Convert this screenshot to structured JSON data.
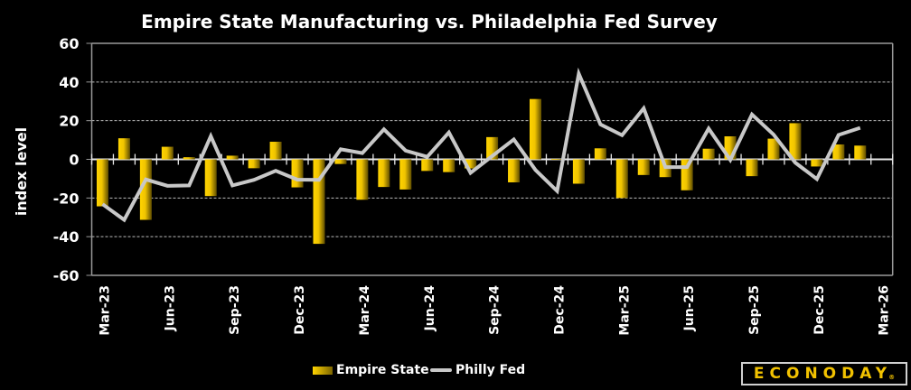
{
  "chart_data": {
    "type": "bar+line",
    "title": "Empire State Manufacturing vs. Philadelphia Fed Survey",
    "xlabel": "",
    "ylabel": "index level",
    "ylim": [
      -60,
      60
    ],
    "yticks": [
      60,
      40,
      20,
      0,
      -20,
      -40,
      -60
    ],
    "grid": true,
    "legend_position": "bottom",
    "categories": [
      "Mar-23",
      "Apr-23",
      "May-23",
      "Jun-23",
      "Jul-23",
      "Aug-23",
      "Sep-23",
      "Oct-23",
      "Nov-23",
      "Dec-23",
      "Jan-24",
      "Feb-24",
      "Mar-24",
      "Apr-24",
      "May-24",
      "Jun-24",
      "Jul-24",
      "Aug-24",
      "Sep-24",
      "Oct-24",
      "Nov-24",
      "Dec-24",
      "Jan-25",
      "Feb-25",
      "Mar-25",
      "Apr-25",
      "May-25",
      "Jun-25",
      "Jul-25",
      "Aug-25",
      "Sep-25",
      "Oct-25",
      "Nov-25",
      "Dec-25",
      "Jan-26",
      "Feb-26",
      "Mar-26"
    ],
    "xtick_labels": [
      "Mar-23",
      "Jun-23",
      "Sep-23",
      "Dec-23",
      "Mar-24",
      "Jun-24",
      "Sep-24",
      "Dec-24",
      "Mar-25",
      "Jun-25",
      "Sep-25",
      "Dec-25",
      "Mar-26"
    ],
    "series": [
      {
        "name": "Empire State",
        "type": "bar",
        "color": "#ffd400",
        "values": [
          -24.3,
          10.9,
          -31.3,
          6.5,
          1.1,
          -19.0,
          1.9,
          -4.6,
          9.1,
          -14.5,
          -43.7,
          -2.4,
          -20.9,
          -14.3,
          -15.6,
          -6.0,
          -6.6,
          -4.7,
          11.5,
          -11.9,
          31.2,
          0.2,
          -12.6,
          5.7,
          -20.0,
          -8.1,
          -9.2,
          -16.0,
          5.5,
          11.9,
          -8.7,
          10.7,
          18.7,
          -3.7,
          7.7,
          7.1,
          null
        ]
      },
      {
        "name": "Philly Fed",
        "type": "line",
        "color": "#c8c8c8",
        "values": [
          -23.2,
          -31.3,
          -10.4,
          -13.7,
          -13.5,
          12.0,
          -13.5,
          -10.6,
          -5.9,
          -10.5,
          -10.6,
          5.2,
          3.2,
          15.5,
          4.5,
          1.3,
          13.9,
          -7.0,
          1.7,
          10.3,
          -5.5,
          -16.4,
          44.3,
          18.1,
          12.5,
          26.4,
          -4.0,
          -4.0,
          15.9,
          -0.3,
          23.2,
          12.8,
          -1.7,
          -10.2,
          12.6,
          16.3,
          null
        ]
      }
    ]
  },
  "legend": {
    "empire_label": "Empire State",
    "philly_label": "Philly Fed"
  },
  "logo": {
    "text": "ECONODAY",
    "mark": "®"
  }
}
